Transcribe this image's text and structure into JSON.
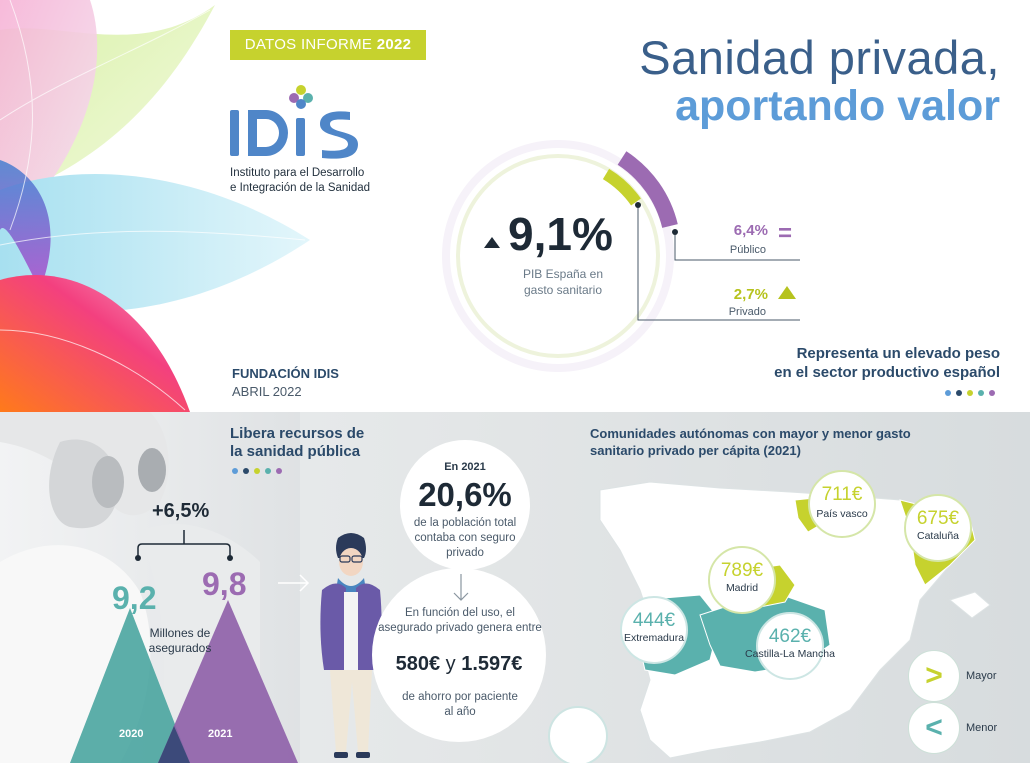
{
  "header": {
    "report_tag_prefix": "DATOS INFORME",
    "report_tag_year": "2022",
    "logo_subtitle_line1": "Instituto para el Desarrollo",
    "logo_subtitle_line2": "e Integración de la Sanidad",
    "foundation": "FUNDACIÓN IDIS",
    "date": "ABRIL 2022"
  },
  "title": {
    "line1": "Sanidad privada,",
    "line2": "aportando valor"
  },
  "pib": {
    "value": "9,1%",
    "label_line1": "PIB España en",
    "label_line2": "gasto sanitario",
    "public_value": "6,4%",
    "public_label": "Público",
    "public_trend": "=",
    "private_value": "2,7%",
    "private_label": "Privado",
    "represents_line1": "Representa un elevado peso",
    "represents_line2": "en el sector productivo español"
  },
  "insured": {
    "title_line1": "Libera recursos de",
    "title_line2": "la sanidad pública",
    "growth": "+6,5%",
    "value_2020": "9,2",
    "value_2021": "9,8",
    "unit_line1": "Millones de",
    "unit_line2": "asegurados",
    "year_2020": "2020",
    "year_2021": "2021"
  },
  "population": {
    "year_label": "En 2021",
    "value": "20,6%",
    "desc_line1": "de la población total",
    "desc_line2": "contaba con seguro",
    "desc_line3": "privado",
    "saving_line1": "En función del uso, el",
    "saving_line2": "asegurado privado genera entre",
    "amount_low": "580€",
    "amount_conj": "y",
    "amount_high": "1.597€",
    "per_line1": "de ahorro por paciente",
    "per_line2": "al año"
  },
  "regions": {
    "title_line1": "Comunidades autónomas con mayor y menor gasto",
    "title_line2": "sanitario privado per cápita (2021)",
    "items": [
      {
        "value": "711€",
        "name": "País vasco"
      },
      {
        "value": "675€",
        "name": "Cataluña"
      },
      {
        "value": "789€",
        "name": "Madrid"
      },
      {
        "value": "444€",
        "name": "Extremadura"
      },
      {
        "value": "462€",
        "name": "Castilla-La Mancha"
      }
    ],
    "legend_mayor": "Mayor",
    "legend_menor": "Menor"
  },
  "colors": {
    "lime": "#c6d22e",
    "teal": "#5ab1ad",
    "purple": "#9c6bb2",
    "blue": "#5d9cd8",
    "navy": "#2b4a6a"
  }
}
